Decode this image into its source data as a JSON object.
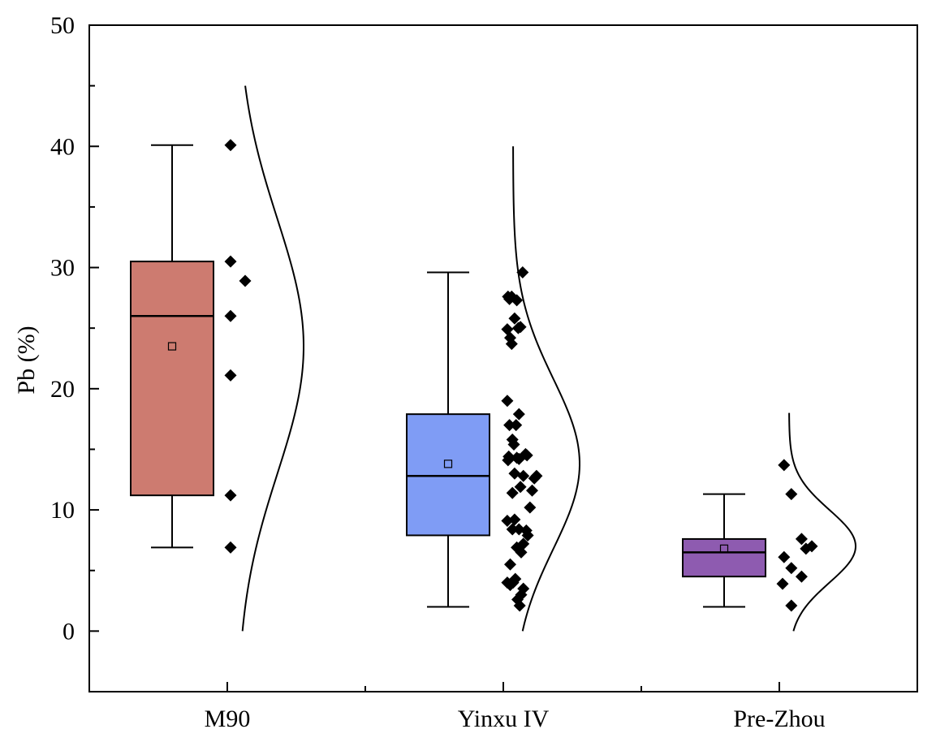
{
  "chart_data": {
    "type": "box",
    "title": "",
    "xlabel": "",
    "ylabel": "Pb (%)",
    "ylim": [
      -5,
      50
    ],
    "yticks": [
      0,
      10,
      20,
      30,
      40,
      50
    ],
    "grid": false,
    "legend": "none",
    "categories": [
      "M90",
      "Yinxu IV",
      "Pre-Zhou"
    ],
    "series": [
      {
        "category": "M90",
        "color": "#CD7B70",
        "box": {
          "whisker_low": 6.9,
          "q1": 11.2,
          "median": 26.0,
          "q3": 30.5,
          "whisker_high": 40.1,
          "mean": 23.5
        },
        "points": [
          {
            "x": 0.0,
            "y": 40.1
          },
          {
            "x": 0.0,
            "y": 30.5
          },
          {
            "x": 0.0,
            "y": 26.0
          },
          {
            "x": 0.0,
            "y": 21.1
          },
          {
            "x": 0.0,
            "y": 11.2
          },
          {
            "x": 0.0,
            "y": 6.9
          },
          {
            "x": 1.0,
            "y": 28.9
          }
        ],
        "curve": {
          "mode": 23.5,
          "sigma": 10.5,
          "ymin": 0,
          "ymax": 45
        }
      },
      {
        "category": "Yinxu IV",
        "color": "#7F9CF5",
        "box": {
          "whisker_low": 2.0,
          "q1": 7.9,
          "median": 12.8,
          "q3": 17.9,
          "whisker_high": 29.6,
          "mean": 13.8
        },
        "points": [
          {
            "x": 0.1,
            "y": 27.6
          },
          {
            "x": 0.2,
            "y": 27.4
          },
          {
            "x": 0.35,
            "y": 27.6
          },
          {
            "x": 0.7,
            "y": 27.3
          },
          {
            "x": 1.1,
            "y": 29.6
          },
          {
            "x": 0.55,
            "y": 25.8
          },
          {
            "x": 0.05,
            "y": 24.9
          },
          {
            "x": 0.8,
            "y": 25.0
          },
          {
            "x": 0.95,
            "y": 25.1
          },
          {
            "x": 0.25,
            "y": 24.2
          },
          {
            "x": 0.35,
            "y": 23.7
          },
          {
            "x": 0.05,
            "y": 19.0
          },
          {
            "x": 0.85,
            "y": 17.9
          },
          {
            "x": 0.2,
            "y": 17.0
          },
          {
            "x": 0.65,
            "y": 17.0
          },
          {
            "x": 0.4,
            "y": 15.8
          },
          {
            "x": 0.5,
            "y": 15.4
          },
          {
            "x": 1.3,
            "y": 14.6
          },
          {
            "x": 1.4,
            "y": 14.5
          },
          {
            "x": 0.1,
            "y": 14.1
          },
          {
            "x": 0.15,
            "y": 14.4
          },
          {
            "x": 0.85,
            "y": 14.2
          },
          {
            "x": 0.7,
            "y": 14.3
          },
          {
            "x": 2.05,
            "y": 12.8
          },
          {
            "x": 1.9,
            "y": 12.6
          },
          {
            "x": 0.55,
            "y": 13.0
          },
          {
            "x": 1.15,
            "y": 12.8
          },
          {
            "x": 0.95,
            "y": 11.9
          },
          {
            "x": 1.75,
            "y": 11.6
          },
          {
            "x": 0.4,
            "y": 11.4
          },
          {
            "x": 1.6,
            "y": 10.2
          },
          {
            "x": 0.05,
            "y": 9.1
          },
          {
            "x": 0.55,
            "y": 9.2
          },
          {
            "x": 0.4,
            "y": 8.4
          },
          {
            "x": 0.85,
            "y": 8.4
          },
          {
            "x": 1.35,
            "y": 8.3
          },
          {
            "x": 1.45,
            "y": 7.9
          },
          {
            "x": 1.15,
            "y": 7.2
          },
          {
            "x": 0.7,
            "y": 6.9
          },
          {
            "x": 1.0,
            "y": 6.5
          },
          {
            "x": 0.25,
            "y": 5.5
          },
          {
            "x": 0.05,
            "y": 4.0
          },
          {
            "x": 0.25,
            "y": 3.8
          },
          {
            "x": 0.45,
            "y": 4.0
          },
          {
            "x": 0.6,
            "y": 4.3
          },
          {
            "x": 1.15,
            "y": 3.5
          },
          {
            "x": 1.0,
            "y": 3.0
          },
          {
            "x": 0.75,
            "y": 2.6
          },
          {
            "x": 0.9,
            "y": 2.1
          }
        ],
        "curve": {
          "mode": 13.8,
          "sigma": 7.0,
          "ymin": 0,
          "ymax": 40
        }
      },
      {
        "category": "Pre-Zhou",
        "color": "#8E5BB0",
        "box": {
          "whisker_low": 2.0,
          "q1": 4.5,
          "median": 6.5,
          "q3": 7.6,
          "whisker_high": 11.3,
          "mean": 6.8
        },
        "points": [
          {
            "x": 0.1,
            "y": 13.7
          },
          {
            "x": 0.6,
            "y": 11.3
          },
          {
            "x": 1.3,
            "y": 7.6
          },
          {
            "x": 2.0,
            "y": 7.0
          },
          {
            "x": 1.6,
            "y": 6.8
          },
          {
            "x": 0.1,
            "y": 6.1
          },
          {
            "x": 0.6,
            "y": 5.2
          },
          {
            "x": 1.3,
            "y": 4.5
          },
          {
            "x": 0.0,
            "y": 3.9
          },
          {
            "x": 0.6,
            "y": 2.1
          }
        ],
        "curve": {
          "mode": 7.0,
          "sigma": 3.0,
          "ymin": 0,
          "ymax": 18
        }
      }
    ]
  }
}
